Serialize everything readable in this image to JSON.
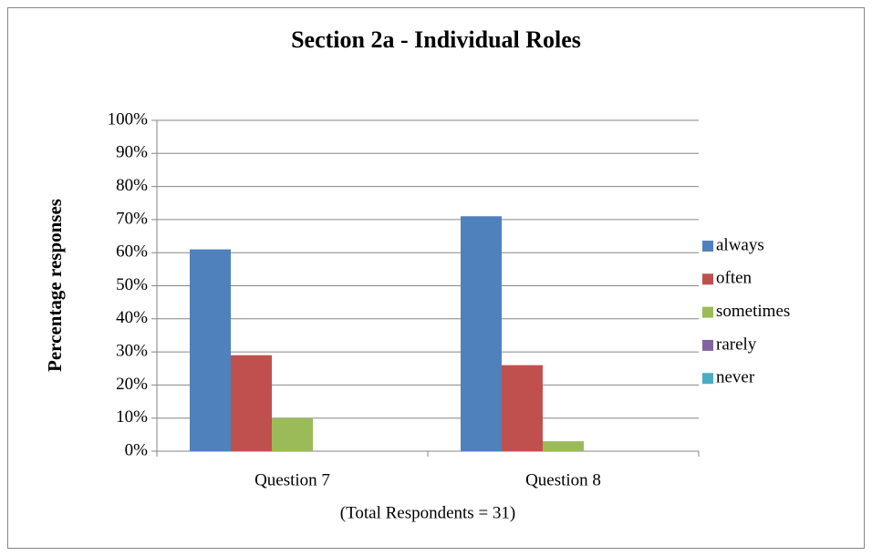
{
  "chart_data": {
    "type": "bar",
    "title": "Section 2a - Individual Roles",
    "ylabel": "Percentage responses",
    "xlabel": "(Total Respondents = 31)",
    "categories": [
      "Question 7",
      "Question 8"
    ],
    "series": [
      {
        "name": "always",
        "color": "#4f81bd",
        "values": [
          61,
          71
        ]
      },
      {
        "name": "often",
        "color": "#c0504d",
        "values": [
          29,
          26
        ]
      },
      {
        "name": "sometimes",
        "color": "#9bbb59",
        "values": [
          10,
          3
        ]
      },
      {
        "name": "rarely",
        "color": "#8064a2",
        "values": [
          0,
          0
        ]
      },
      {
        "name": "never",
        "color": "#4bacc6",
        "values": [
          0,
          0
        ]
      }
    ],
    "ylim": [
      0,
      100
    ],
    "yticks": [
      {
        "value": 0,
        "label": "0%"
      },
      {
        "value": 10,
        "label": "10%"
      },
      {
        "value": 20,
        "label": "20%"
      },
      {
        "value": 30,
        "label": "30%"
      },
      {
        "value": 40,
        "label": "40%"
      },
      {
        "value": 50,
        "label": "50%"
      },
      {
        "value": 60,
        "label": "60%"
      },
      {
        "value": 70,
        "label": "70%"
      },
      {
        "value": 80,
        "label": "80%"
      },
      {
        "value": 90,
        "label": "90%"
      },
      {
        "value": 100,
        "label": "100%"
      }
    ],
    "grid": true,
    "legend": "right"
  }
}
